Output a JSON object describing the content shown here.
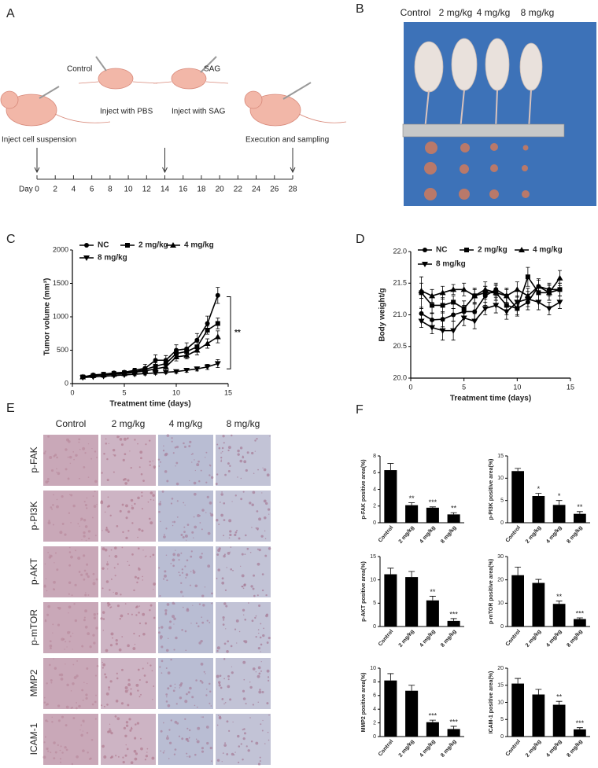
{
  "panel_labels": [
    "A",
    "B",
    "C",
    "D",
    "E",
    "F"
  ],
  "timeline": {
    "day_label": "Day",
    "xlim": [
      0,
      28
    ],
    "ticks": [
      0,
      2,
      4,
      6,
      8,
      10,
      12,
      14,
      16,
      18,
      20,
      22,
      24,
      26,
      28
    ],
    "arrows": [
      0,
      14,
      28
    ],
    "labels": [
      "Control",
      "Inject with PBS",
      "SAG",
      "Inject with SAG",
      "Inject cell suspension",
      "Execution and sampling"
    ]
  },
  "photo": {
    "columns": [
      "Control",
      "2 mg/kg",
      "4 mg/kg",
      "8 mg/kg"
    ]
  },
  "ihc": {
    "columns": [
      "Control",
      "2 mg/kg",
      "4 mg/kg",
      "8 mg/kg"
    ],
    "rows": [
      "p-FAK",
      "p-PI3K",
      "p-AKT",
      "p-mTOR",
      "MMP2",
      "ICAM-1"
    ]
  },
  "chart_data": [
    {
      "type": "line",
      "ylabel": "Tumor volume (mm³)",
      "xlabel": "Treatment time (days)",
      "annotation": "**",
      "x": [
        1,
        2,
        3,
        4,
        5,
        6,
        7,
        8,
        9,
        10,
        11,
        12,
        13,
        14
      ],
      "xlim": [
        0,
        15
      ],
      "xticks": [
        0,
        5,
        10,
        15
      ],
      "ylim": [
        0,
        2000
      ],
      "yticks": [
        0,
        500,
        1000,
        1500,
        2000
      ],
      "series": [
        {
          "name": "NC",
          "color": "#000000",
          "marker": "circle",
          "values": [
            100,
            130,
            140,
            160,
            170,
            200,
            230,
            350,
            350,
            500,
            520,
            650,
            900,
            1320
          ],
          "errors": [
            15,
            20,
            20,
            25,
            25,
            30,
            60,
            80,
            70,
            80,
            90,
            100,
            110,
            120
          ]
        },
        {
          "name": "2 mg/kg",
          "color": "#000000",
          "marker": "square",
          "values": [
            100,
            120,
            140,
            150,
            160,
            180,
            210,
            260,
            300,
            450,
            480,
            550,
            800,
            900
          ],
          "errors": [
            15,
            15,
            20,
            20,
            20,
            30,
            40,
            50,
            60,
            60,
            60,
            70,
            60,
            80
          ]
        },
        {
          "name": "4 mg/kg",
          "color": "#000000",
          "marker": "triangle-up",
          "values": [
            100,
            120,
            130,
            140,
            150,
            170,
            190,
            220,
            250,
            400,
            420,
            500,
            600,
            700
          ],
          "errors": [
            15,
            15,
            20,
            20,
            20,
            25,
            30,
            40,
            50,
            60,
            50,
            70,
            70,
            90
          ]
        },
        {
          "name": "8 mg/kg",
          "color": "#000000",
          "marker": "triangle-down",
          "values": [
            90,
            100,
            110,
            120,
            130,
            140,
            150,
            160,
            170,
            180,
            200,
            220,
            250,
            300
          ],
          "errors": [
            10,
            10,
            15,
            15,
            15,
            20,
            20,
            20,
            20,
            25,
            30,
            30,
            40,
            60
          ]
        }
      ]
    },
    {
      "type": "line",
      "ylabel": "Body weight/g",
      "xlabel": "Treatment time (days)",
      "x": [
        1,
        2,
        3,
        4,
        5,
        6,
        7,
        8,
        9,
        10,
        11,
        12,
        13,
        14
      ],
      "xlim": [
        0,
        15
      ],
      "xticks": [
        0,
        5,
        10,
        15
      ],
      "ylim": [
        20,
        22
      ],
      "yticks": [
        {
          "value": 20,
          "label": "20.0"
        },
        {
          "value": 20.5,
          "label": "20.5"
        },
        {
          "value": 21,
          "label": "21.0"
        },
        {
          "value": 21.5,
          "label": "21.5"
        },
        {
          "value": 22,
          "label": "22.0"
        }
      ],
      "series": [
        {
          "name": "NC",
          "color": "#000000",
          "marker": "circle",
          "values": [
            21.02,
            20.92,
            20.93,
            21.0,
            21.05,
            21.05,
            21.3,
            21.4,
            21.3,
            21.1,
            21.2,
            21.45,
            21.4,
            21.4
          ],
          "errors": [
            0.1,
            0.1,
            0.12,
            0.1,
            0.1,
            0.12,
            0.15,
            0.1,
            0.12,
            0.1,
            0.12,
            0.12,
            0.1,
            0.1
          ]
        },
        {
          "name": "2 mg/kg",
          "color": "#000000",
          "marker": "square",
          "values": [
            21.35,
            21.15,
            21.15,
            21.2,
            21.1,
            21.3,
            21.35,
            21.35,
            21.15,
            21.1,
            21.6,
            21.35,
            21.35,
            21.4
          ],
          "errors": [
            0.25,
            0.12,
            0.12,
            0.1,
            0.12,
            0.12,
            0.1,
            0.12,
            0.15,
            0.12,
            0.15,
            0.12,
            0.12,
            0.1
          ]
        },
        {
          "name": "4 mg/kg",
          "color": "#000000",
          "marker": "triangle-up",
          "values": [
            21.38,
            21.3,
            21.35,
            21.4,
            21.4,
            21.3,
            21.4,
            21.35,
            21.3,
            21.4,
            21.3,
            21.45,
            21.35,
            21.58
          ],
          "errors": [
            0.12,
            0.1,
            0.1,
            0.08,
            0.1,
            0.1,
            0.12,
            0.12,
            0.1,
            0.12,
            0.12,
            0.1,
            0.12,
            0.12
          ]
        },
        {
          "name": "8 mg/kg",
          "color": "#000000",
          "marker": "triangle-down",
          "values": [
            20.9,
            20.8,
            20.75,
            20.75,
            20.95,
            20.9,
            21.1,
            21.15,
            21.05,
            21.2,
            21.25,
            21.2,
            21.1,
            21.2
          ],
          "errors": [
            0.1,
            0.1,
            0.15,
            0.15,
            0.12,
            0.12,
            0.1,
            0.12,
            0.12,
            0.1,
            0.12,
            0.12,
            0.1,
            0.1
          ]
        }
      ]
    },
    {
      "type": "bar",
      "ylabel": "p-FAK positive area(%)",
      "categories": [
        "Control",
        "2 mg/kg",
        "4 mg/kg",
        "8 mg/kg"
      ],
      "color": "#000000",
      "values": [
        6.3,
        2.1,
        1.8,
        1.0
      ],
      "errors": [
        0.8,
        0.3,
        0.1,
        0.2
      ],
      "significance": [
        null,
        "**",
        "***",
        "**"
      ],
      "ylim": [
        0,
        8
      ],
      "yticks": [
        0,
        2,
        4,
        6,
        8
      ]
    },
    {
      "type": "bar",
      "ylabel": "p-PI3K positive area(%)",
      "categories": [
        "Control",
        "2 mg/kg",
        "4 mg/kg",
        "8 mg/kg"
      ],
      "color": "#000000",
      "values": [
        11.6,
        6.0,
        4.0,
        2.0
      ],
      "errors": [
        0.6,
        0.6,
        1.0,
        0.5
      ],
      "significance": [
        null,
        "*",
        "*",
        "**"
      ],
      "ylim": [
        0,
        15
      ],
      "yticks": [
        0,
        5,
        10,
        15
      ]
    },
    {
      "type": "bar",
      "ylabel": "p-AKT positive area(%)",
      "categories": [
        "Control",
        "2 mg/kg",
        "4 mg/kg",
        "8 mg/kg"
      ],
      "color": "#000000",
      "values": [
        11.2,
        10.6,
        5.6,
        1.2
      ],
      "errors": [
        1.3,
        1.2,
        0.9,
        0.5
      ],
      "significance": [
        null,
        null,
        "**",
        "***"
      ],
      "ylim": [
        0,
        15
      ],
      "yticks": [
        0,
        5,
        10,
        15
      ]
    },
    {
      "type": "bar",
      "ylabel": "p-mTOR positive area(%)",
      "categories": [
        "Control",
        "2 mg/kg",
        "4 mg/kg",
        "8 mg/kg"
      ],
      "color": "#000000",
      "values": [
        22,
        18.7,
        9.7,
        3.2
      ],
      "errors": [
        3.5,
        1.5,
        1.2,
        0.5
      ],
      "significance": [
        null,
        null,
        "**",
        "***"
      ],
      "ylim": [
        0,
        30
      ],
      "yticks": [
        0,
        10,
        20,
        30
      ]
    },
    {
      "type": "bar",
      "ylabel": "MMP2 positive area(%)",
      "categories": [
        "Control",
        "2 mg/kg",
        "4 mg/kg",
        "8 mg/kg"
      ],
      "color": "#000000",
      "values": [
        8.2,
        6.7,
        2.1,
        1.1
      ],
      "errors": [
        1.0,
        0.8,
        0.3,
        0.4
      ],
      "significance": [
        null,
        null,
        "***",
        "***"
      ],
      "ylim": [
        0,
        10
      ],
      "yticks": [
        0,
        2,
        4,
        6,
        8,
        10
      ]
    },
    {
      "type": "bar",
      "ylabel": "ICAM-1 positive area(%)",
      "categories": [
        "Control",
        "2 mg/kg",
        "4 mg/kg",
        "8 mg/kg"
      ],
      "color": "#000000",
      "values": [
        15.5,
        12.3,
        9.3,
        2.1
      ],
      "errors": [
        1.5,
        1.5,
        1.0,
        0.5
      ],
      "significance": [
        null,
        null,
        "**",
        "***"
      ],
      "ylim": [
        0,
        20
      ],
      "yticks": [
        0,
        5,
        10,
        15,
        20
      ]
    }
  ]
}
